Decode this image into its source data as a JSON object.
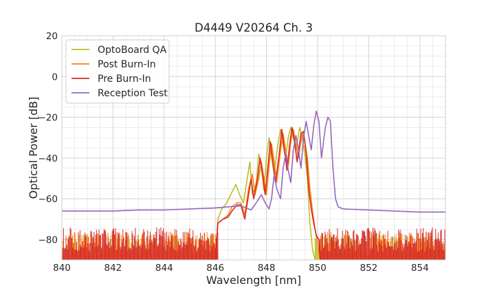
{
  "chart_data": {
    "type": "line",
    "title": "D4449 V20264 Ch. 3",
    "xlabel": "Wavelength [nm]",
    "ylabel": "Optical Power [dB]",
    "xlim": [
      840,
      855
    ],
    "ylim": [
      -90,
      20
    ],
    "xticks": [
      "840",
      "842",
      "844",
      "846",
      "848",
      "850",
      "852",
      "854"
    ],
    "yticks": [
      "20",
      "0",
      "−20",
      "−40",
      "−60",
      "−80"
    ],
    "grid": true,
    "legend_position": "top-left",
    "series": [
      {
        "name": "OptoBoard QA",
        "color": "#bcbd22",
        "noise_floor": {
          "x_ranges": [
            [
              840,
              846.1
            ],
            [
              849.9,
              855
            ]
          ],
          "top": -77,
          "bottom": -90
        },
        "points": [
          [
            846.0,
            -90
          ],
          [
            846.1,
            -70
          ],
          [
            846.25,
            -65
          ],
          [
            846.45,
            -62
          ],
          [
            846.6,
            -58
          ],
          [
            846.8,
            -53
          ],
          [
            846.95,
            -58
          ],
          [
            847.1,
            -62
          ],
          [
            847.25,
            -50
          ],
          [
            847.35,
            -42
          ],
          [
            847.45,
            -58
          ],
          [
            847.6,
            -52
          ],
          [
            847.7,
            -38
          ],
          [
            847.8,
            -45
          ],
          [
            847.9,
            -56
          ],
          [
            848.0,
            -40
          ],
          [
            848.1,
            -30
          ],
          [
            848.2,
            -40
          ],
          [
            848.3,
            -48
          ],
          [
            848.45,
            -33
          ],
          [
            848.55,
            -26
          ],
          [
            848.65,
            -34
          ],
          [
            848.75,
            -40
          ],
          [
            848.85,
            -30
          ],
          [
            848.95,
            -25
          ],
          [
            849.05,
            -30
          ],
          [
            849.15,
            -36
          ],
          [
            849.3,
            -25
          ],
          [
            849.4,
            -30
          ],
          [
            849.5,
            -38
          ],
          [
            849.6,
            -50
          ],
          [
            849.7,
            -72
          ],
          [
            849.8,
            -85
          ],
          [
            849.9,
            -90
          ]
        ]
      },
      {
        "name": "Post Burn-In",
        "color": "#ff7f0e",
        "noise_floor": {
          "x_ranges": [
            [
              840,
              846.1
            ],
            [
              850.1,
              855
            ]
          ],
          "top": -76,
          "bottom": -90
        },
        "points": [
          [
            846.0,
            -90
          ],
          [
            846.1,
            -72
          ],
          [
            846.3,
            -70
          ],
          [
            846.5,
            -68
          ],
          [
            846.65,
            -64
          ],
          [
            846.85,
            -62
          ],
          [
            847.0,
            -62
          ],
          [
            847.15,
            -68
          ],
          [
            847.3,
            -55
          ],
          [
            847.45,
            -48
          ],
          [
            847.55,
            -58
          ],
          [
            847.7,
            -50
          ],
          [
            847.8,
            -42
          ],
          [
            847.9,
            -50
          ],
          [
            848.0,
            -58
          ],
          [
            848.1,
            -44
          ],
          [
            848.2,
            -33
          ],
          [
            848.3,
            -42
          ],
          [
            848.4,
            -52
          ],
          [
            848.55,
            -36
          ],
          [
            848.65,
            -28
          ],
          [
            848.75,
            -36
          ],
          [
            848.85,
            -44
          ],
          [
            848.95,
            -32
          ],
          [
            849.05,
            -26
          ],
          [
            849.15,
            -33
          ],
          [
            849.25,
            -40
          ],
          [
            849.4,
            -28
          ],
          [
            849.5,
            -32
          ],
          [
            849.6,
            -40
          ],
          [
            849.7,
            -55
          ],
          [
            849.8,
            -66
          ],
          [
            849.9,
            -75
          ],
          [
            850.0,
            -82
          ],
          [
            850.1,
            -90
          ]
        ]
      },
      {
        "name": "Pre Burn-In",
        "color": "#d62728",
        "noise_floor": {
          "x_ranges": [
            [
              840,
              846.1
            ],
            [
              850.1,
              855
            ]
          ],
          "top": -74,
          "bottom": -90
        },
        "points": [
          [
            846.0,
            -90
          ],
          [
            846.1,
            -72
          ],
          [
            846.3,
            -70
          ],
          [
            846.5,
            -69
          ],
          [
            846.65,
            -66
          ],
          [
            846.85,
            -63
          ],
          [
            847.0,
            -63
          ],
          [
            847.15,
            -70
          ],
          [
            847.3,
            -58
          ],
          [
            847.4,
            -50
          ],
          [
            847.5,
            -60
          ],
          [
            847.65,
            -50
          ],
          [
            847.75,
            -40
          ],
          [
            847.85,
            -48
          ],
          [
            847.95,
            -58
          ],
          [
            848.05,
            -45
          ],
          [
            848.15,
            -32
          ],
          [
            848.25,
            -42
          ],
          [
            848.35,
            -52
          ],
          [
            848.5,
            -38
          ],
          [
            848.6,
            -26
          ],
          [
            848.7,
            -36
          ],
          [
            848.8,
            -46
          ],
          [
            848.9,
            -34
          ],
          [
            849.0,
            -25
          ],
          [
            849.1,
            -32
          ],
          [
            849.2,
            -42
          ],
          [
            849.35,
            -28
          ],
          [
            849.45,
            -27
          ],
          [
            849.55,
            -38
          ],
          [
            849.65,
            -55
          ],
          [
            849.75,
            -65
          ],
          [
            849.85,
            -72
          ],
          [
            849.95,
            -78
          ],
          [
            850.05,
            -80
          ],
          [
            850.1,
            -90
          ]
        ]
      },
      {
        "name": "Reception Test",
        "color": "#9467bd",
        "noise_floor": null,
        "points": [
          [
            840,
            -66
          ],
          [
            841,
            -66
          ],
          [
            842,
            -66
          ],
          [
            843,
            -65.5
          ],
          [
            844,
            -65.5
          ],
          [
            845,
            -65
          ],
          [
            846,
            -64.5
          ],
          [
            846.5,
            -64
          ],
          [
            847,
            -63.5
          ],
          [
            847.2,
            -64.5
          ],
          [
            847.4,
            -65.5
          ],
          [
            847.6,
            -62
          ],
          [
            847.8,
            -58
          ],
          [
            847.95,
            -62
          ],
          [
            848.1,
            -65
          ],
          [
            848.2,
            -60
          ],
          [
            848.3,
            -48
          ],
          [
            848.4,
            -55
          ],
          [
            848.55,
            -60
          ],
          [
            848.65,
            -45
          ],
          [
            848.75,
            -38
          ],
          [
            848.85,
            -46
          ],
          [
            848.95,
            -52
          ],
          [
            849.05,
            -36
          ],
          [
            849.15,
            -29
          ],
          [
            849.25,
            -36
          ],
          [
            849.35,
            -45
          ],
          [
            849.45,
            -30
          ],
          [
            849.55,
            -22
          ],
          [
            849.65,
            -29
          ],
          [
            849.75,
            -36
          ],
          [
            849.85,
            -24
          ],
          [
            849.95,
            -17
          ],
          [
            850.05,
            -22
          ],
          [
            850.15,
            -40
          ],
          [
            850.3,
            -25
          ],
          [
            850.4,
            -20
          ],
          [
            850.5,
            -22
          ],
          [
            850.6,
            -45
          ],
          [
            850.7,
            -60
          ],
          [
            850.8,
            -64
          ],
          [
            851,
            -65
          ],
          [
            852,
            -65.5
          ],
          [
            853,
            -66
          ],
          [
            854,
            -66.5
          ],
          [
            855,
            -66.5
          ]
        ]
      }
    ]
  }
}
